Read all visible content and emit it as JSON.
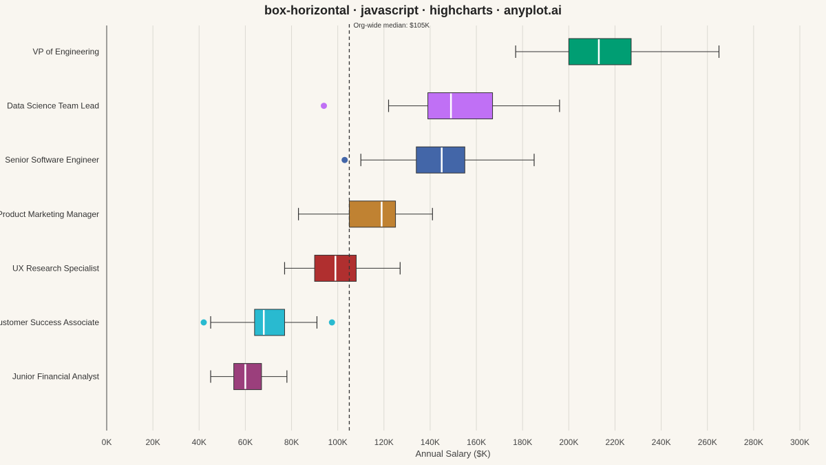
{
  "chart_data": {
    "type": "boxplot",
    "orientation": "horizontal",
    "title": "box-horizontal · javascript · highcharts · anyplot.ai",
    "xlabel": "Annual Salary ($K)",
    "ylabel": "",
    "xlim": [
      0,
      300
    ],
    "xticks": [
      0,
      20,
      40,
      60,
      80,
      100,
      120,
      140,
      160,
      180,
      200,
      220,
      240,
      260,
      280,
      300
    ],
    "xtick_labels": [
      "0K",
      "20K",
      "40K",
      "60K",
      "80K",
      "100K",
      "120K",
      "140K",
      "160K",
      "180K",
      "200K",
      "220K",
      "240K",
      "260K",
      "280K",
      "300K"
    ],
    "grid": true,
    "reference_line": {
      "value": 105,
      "label": "Org-wide median: $105K",
      "style": "dashed"
    },
    "categories": [
      "VP of Engineering",
      "Data Science Team Lead",
      "Senior Software Engineer",
      "Product Marketing Manager",
      "UX Research Specialist",
      "Customer Success Associate",
      "Junior Financial Analyst"
    ],
    "boxes": [
      {
        "category": "VP of Engineering",
        "low": 177,
        "q1": 200,
        "median": 213,
        "q3": 227,
        "high": 265,
        "outliers": [],
        "color": "#009e73"
      },
      {
        "category": "Data Science Team Lead",
        "low": 122,
        "q1": 139,
        "median": 149,
        "q3": 167,
        "high": 196,
        "outliers": [
          94
        ],
        "color": "#c070f5"
      },
      {
        "category": "Senior Software Engineer",
        "low": 110,
        "q1": 134,
        "median": 145,
        "q3": 155,
        "high": 185,
        "outliers": [
          103
        ],
        "color": "#4366a8"
      },
      {
        "category": "Product Marketing Manager",
        "low": 83,
        "q1": 105,
        "median": 119,
        "q3": 125,
        "high": 141,
        "outliers": [],
        "color": "#c08232"
      },
      {
        "category": "UX Research Specialist",
        "low": 77,
        "q1": 90,
        "median": 99,
        "q3": 108,
        "high": 127,
        "outliers": [],
        "color": "#b02f2f"
      },
      {
        "category": "Customer Success Associate",
        "low": 45,
        "q1": 64,
        "median": 68,
        "q3": 77,
        "high": 91,
        "outliers": [
          42,
          97.5
        ],
        "color": "#29bad0"
      },
      {
        "category": "Junior Financial Analyst",
        "low": 45,
        "q1": 55,
        "median": 60,
        "q3": 67,
        "high": 78,
        "outliers": [],
        "color": "#9b3f7c"
      }
    ]
  }
}
